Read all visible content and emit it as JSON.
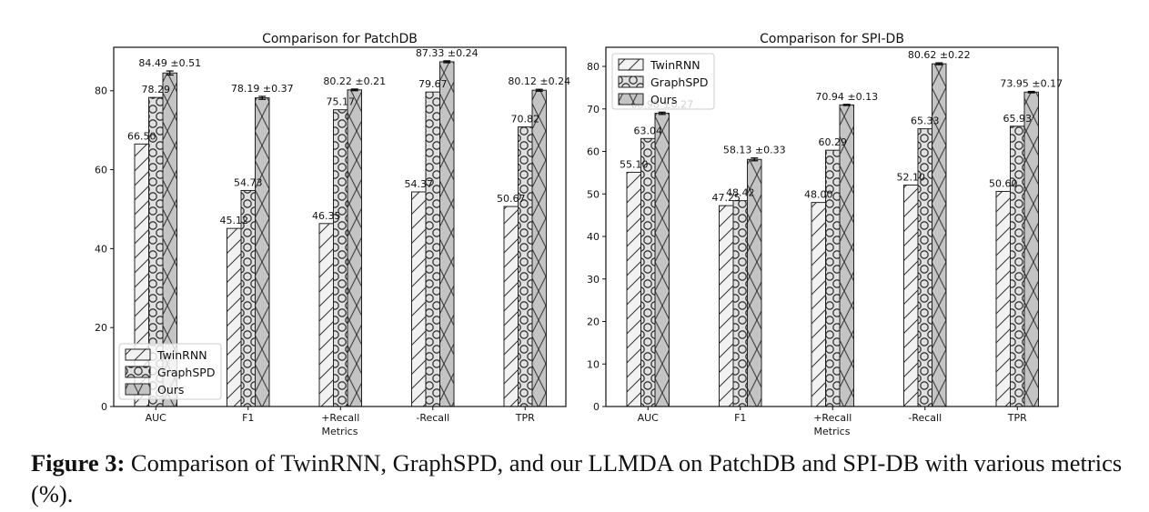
{
  "caption": {
    "label": "Figure 3:",
    "text": "Comparison of TwinRNN, GraphSPD, and our LLMDA on PatchDB and SPI-DB with various metrics (%)."
  },
  "legend": [
    "TwinRNN",
    "GraphSPD",
    "Ours"
  ],
  "chart_data": [
    {
      "type": "bar",
      "title": "Comparison for PatchDB",
      "xlabel": "Metrics",
      "ylabel": "",
      "categories": [
        "AUC",
        "F1",
        "+Recall",
        "-Recall",
        "TPR"
      ],
      "ylim": [
        0,
        91
      ],
      "yticks": [
        0,
        20,
        40,
        60,
        80
      ],
      "legend_position": "lower-left",
      "series": [
        {
          "name": "TwinRNN",
          "values": [
            66.5,
            45.12,
            46.35,
            54.37,
            50.67
          ],
          "labels": [
            "66.50",
            "45.12",
            "46.35",
            "54.37",
            "50.67"
          ],
          "hatch": "diagonal"
        },
        {
          "name": "GraphSPD",
          "values": [
            78.29,
            54.73,
            75.17,
            79.67,
            70.82
          ],
          "labels": [
            "78.29",
            "54.73",
            "75.17",
            "79.67",
            "70.82"
          ],
          "hatch": "circles"
        },
        {
          "name": "Ours",
          "values": [
            84.49,
            78.19,
            80.22,
            87.33,
            80.12
          ],
          "labels": [
            "84.49 ±0.51",
            "78.19 ±0.37",
            "80.22 ±0.21",
            "87.33 ±0.24",
            "80.12 ±0.24"
          ],
          "errors": [
            0.51,
            0.37,
            0.21,
            0.24,
            0.24
          ],
          "hatch": "cross"
        }
      ]
    },
    {
      "type": "bar",
      "title": "Comparison for SPI-DB",
      "xlabel": "Metrics",
      "ylabel": "",
      "categories": [
        "AUC",
        "F1",
        "+Recall",
        "-Recall",
        "TPR"
      ],
      "ylim": [
        0,
        84.5
      ],
      "yticks": [
        0,
        10,
        20,
        30,
        40,
        50,
        60,
        70,
        80
      ],
      "legend_position": "upper-left",
      "series": [
        {
          "name": "TwinRNN",
          "values": [
            55.1,
            47.25,
            48.0,
            52.1,
            50.6
          ],
          "labels": [
            "55.10",
            "47.25",
            "48.00",
            "52.10",
            "50.60"
          ],
          "hatch": "diagonal"
        },
        {
          "name": "GraphSPD",
          "values": [
            63.04,
            48.42,
            60.29,
            65.33,
            65.93
          ],
          "labels": [
            "63.04",
            "48.42",
            "60.29",
            "65.33",
            "65.93"
          ],
          "hatch": "circles"
        },
        {
          "name": "Ours",
          "values": [
            68.98,
            58.13,
            70.94,
            80.62,
            73.95
          ],
          "labels": [
            "68.98 ±0.27",
            "58.13 ±0.33",
            "70.94 ±0.13",
            "80.62 ±0.22",
            "73.95 ±0.17"
          ],
          "errors": [
            0.27,
            0.33,
            0.13,
            0.22,
            0.17
          ],
          "hatch": "cross"
        }
      ]
    }
  ]
}
